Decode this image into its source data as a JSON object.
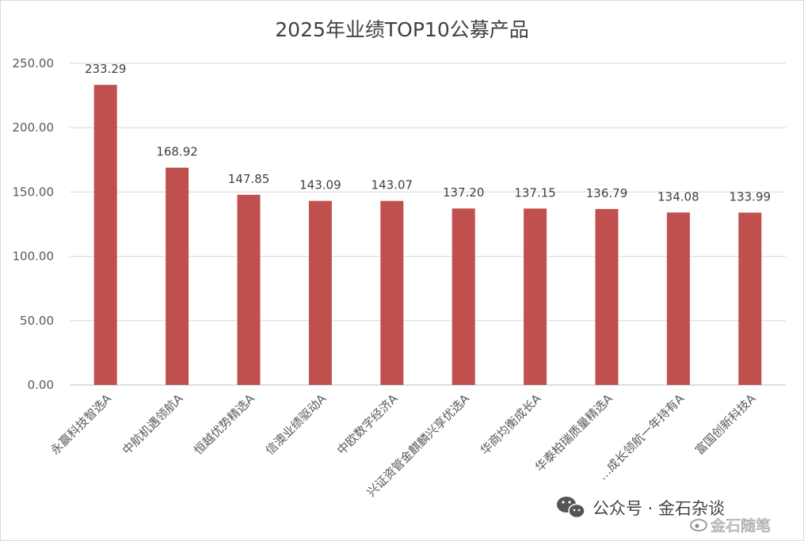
{
  "chart_data": {
    "type": "bar",
    "title": "2025年业绩TOP10公募产品",
    "xlabel": "",
    "ylabel": "",
    "ylim": [
      0,
      250
    ],
    "yticks": [
      "0.00",
      "50.00",
      "100.00",
      "150.00",
      "200.00",
      "250.00"
    ],
    "grid": true,
    "bar_color": "#c0504d",
    "categories": [
      "永赢科技智选A",
      "中航机遇领航A",
      "恒越优势精选A",
      "信澳业绩驱动A",
      "中欧数字经济A",
      "兴证资管金麒麟兴享优选A",
      "华商均衡成长A",
      "华泰柏瑞质量精选A",
      "…成长领航一年持有A",
      "富国创新科技A"
    ],
    "values": [
      233.29,
      168.92,
      147.85,
      143.09,
      143.07,
      137.2,
      137.15,
      136.79,
      134.08,
      133.99
    ],
    "data_labels": [
      "233.29",
      "168.92",
      "147.85",
      "143.09",
      "143.07",
      "137.20",
      "137.15",
      "136.79",
      "134.08",
      "133.99"
    ]
  },
  "watermark": {
    "line1": "公众号 · 金石杂谈",
    "line2": "金石随笔",
    "icon": "wechat-icon"
  }
}
